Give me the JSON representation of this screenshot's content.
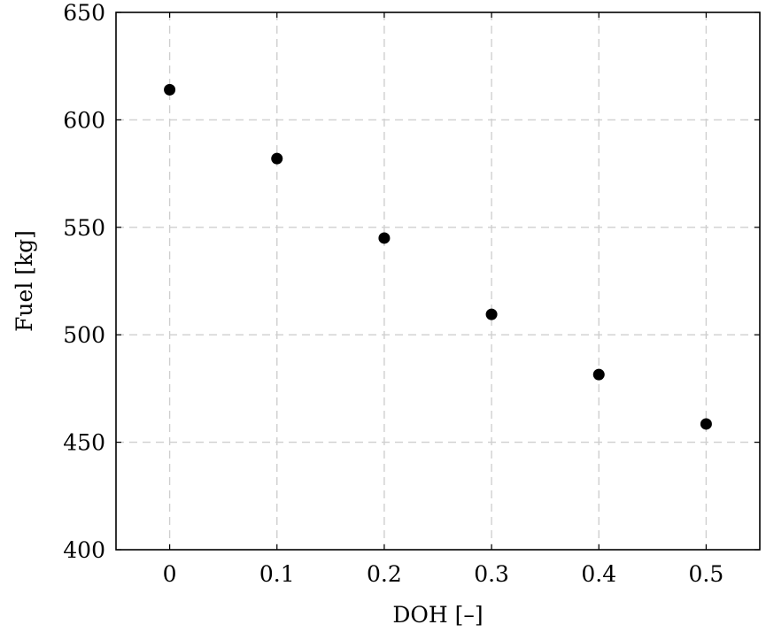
{
  "chart_data": {
    "type": "scatter",
    "title": "",
    "xlabel": "DOH [–]",
    "ylabel": "Fuel [kg]",
    "xlim": [
      -0.05,
      0.55
    ],
    "ylim": [
      400,
      650
    ],
    "x_ticks": [
      0,
      0.1,
      0.2,
      0.3,
      0.4,
      0.5
    ],
    "x_tick_labels": [
      "0",
      "0.1",
      "0.2",
      "0.3",
      "0.4",
      "0.5"
    ],
    "y_ticks": [
      400,
      450,
      500,
      550,
      600,
      650
    ],
    "y_tick_labels": [
      "400",
      "450",
      "500",
      "550",
      "600",
      "650"
    ],
    "grid": true,
    "grid_style": "dashed",
    "series": [
      {
        "color": "#000000",
        "marker": "circle",
        "x": [
          0,
          0.1,
          0.2,
          0.3,
          0.4,
          0.5
        ],
        "y": [
          614,
          582,
          545,
          509.5,
          481.5,
          458.5
        ]
      }
    ]
  }
}
